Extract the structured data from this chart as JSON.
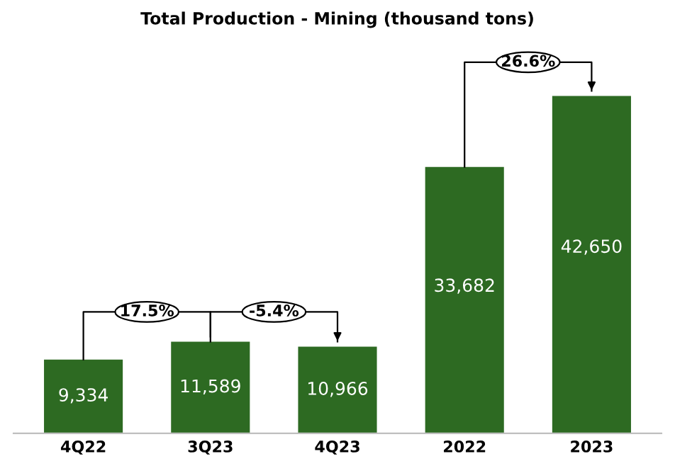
{
  "chart_data": {
    "type": "bar",
    "title": "Total Production - Mining (thousand tons)",
    "categories": [
      "4Q22",
      "3Q23",
      "4Q23",
      "2022",
      "2023"
    ],
    "values": [
      9334,
      11589,
      10966,
      33682,
      42650
    ],
    "value_labels": [
      "9,334",
      "11,589",
      "10,966",
      "33,682",
      "42,650"
    ],
    "color": "#2d6a22",
    "annotations": [
      "17.5%",
      "-5.4%",
      "26.6%"
    ],
    "grid": false,
    "legend": false,
    "tick_labels": "x"
  }
}
